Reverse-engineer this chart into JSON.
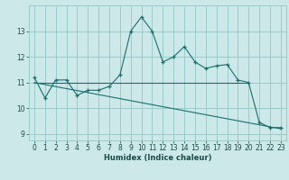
{
  "title": "",
  "xlabel": "Humidex (Indice chaleur)",
  "bg_color": "#cce8e8",
  "grid_color": "#99cccc",
  "line_color": "#1a6e6e",
  "x_data": [
    0,
    1,
    2,
    3,
    4,
    5,
    6,
    7,
    8,
    9,
    10,
    11,
    12,
    13,
    14,
    15,
    16,
    17,
    18,
    19,
    20,
    21,
    22,
    23
  ],
  "y_main": [
    11.2,
    10.4,
    11.1,
    11.1,
    10.5,
    10.7,
    10.7,
    10.85,
    11.3,
    13.0,
    13.55,
    13.0,
    11.8,
    12.0,
    12.4,
    11.8,
    11.55,
    11.65,
    11.7,
    11.1,
    11.0,
    9.45,
    9.25,
    9.25
  ],
  "y_horiz_start": 11.0,
  "y_horiz_end": 11.0,
  "x_horiz_start": 0,
  "x_horiz_end": 20,
  "y_diag_start": 11.0,
  "y_diag_end": 9.2,
  "x_diag_start": 0,
  "x_diag_end": 23,
  "xlim": [
    -0.5,
    23.5
  ],
  "ylim": [
    8.75,
    14.0
  ],
  "yticks": [
    9,
    10,
    11,
    12,
    13
  ],
  "xticks": [
    0,
    1,
    2,
    3,
    4,
    5,
    6,
    7,
    8,
    9,
    10,
    11,
    12,
    13,
    14,
    15,
    16,
    17,
    18,
    19,
    20,
    21,
    22,
    23
  ],
  "tick_fontsize": 5.5,
  "xlabel_fontsize": 6.0
}
